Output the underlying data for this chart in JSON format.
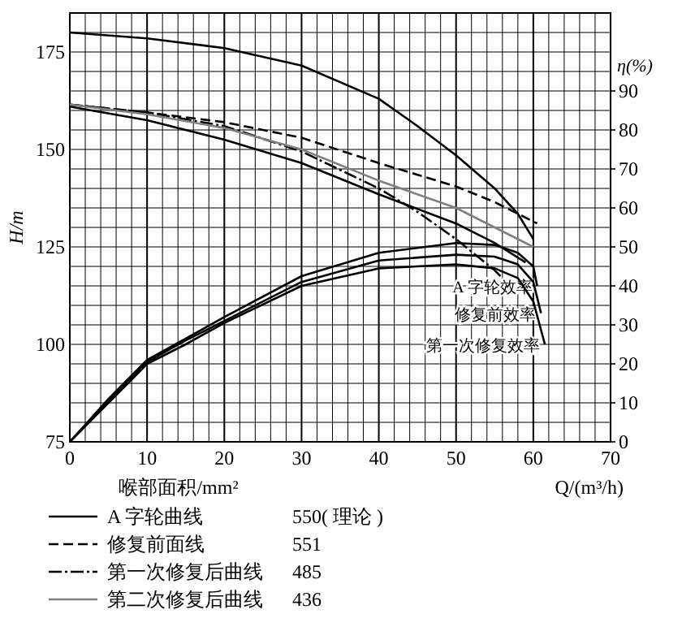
{
  "chart_data": {
    "type": "line",
    "xlabel": "Q/(m³/h)",
    "ylabel": "H/m",
    "y2label": "η(%)",
    "annotations": [
      "550( 理论 )",
      "551",
      "485",
      "436",
      "喉部面积/mm²"
    ],
    "xlim": [
      0,
      70
    ],
    "ylim": [
      75,
      185
    ],
    "y2lim": [
      0,
      110
    ],
    "xticks": [
      0,
      {
        "value": 2,
        "label": null
      },
      {
        "value": 4,
        "label": null
      },
      {
        "value": 6,
        "label": null
      },
      {
        "value": 8,
        "label": null
      },
      10,
      {
        "value": 12,
        "label": null
      },
      {
        "value": 14,
        "label": null
      },
      {
        "value": 16,
        "label": null
      },
      {
        "value": 18,
        "label": null
      },
      20,
      {
        "value": 22,
        "label": null
      },
      {
        "value": 24,
        "label": null
      },
      {
        "value": 26,
        "label": null
      },
      {
        "value": 28,
        "label": null
      },
      30,
      {
        "value": 32,
        "label": null
      },
      {
        "value": 34,
        "label": null
      },
      {
        "value": 36,
        "label": null
      },
      {
        "value": 38,
        "label": null
      },
      40,
      {
        "value": 42,
        "label": null
      },
      {
        "value": 44,
        "label": null
      },
      {
        "value": 46,
        "label": null
      },
      {
        "value": 48,
        "label": null
      },
      50,
      {
        "value": 52,
        "label": null
      },
      {
        "value": 54,
        "label": null
      },
      {
        "value": 56,
        "label": null
      },
      {
        "value": 58,
        "label": null
      },
      60,
      {
        "value": 62,
        "label": null
      },
      {
        "value": 64,
        "label": null
      },
      {
        "value": 66,
        "label": null
      },
      {
        "value": 68,
        "label": null
      },
      70
    ],
    "yticks": [
      75,
      {
        "value": 80,
        "label": null
      },
      {
        "value": 85,
        "label": null
      },
      {
        "value": 90,
        "label": null
      },
      {
        "value": 95,
        "label": null
      },
      100,
      {
        "value": 105,
        "label": null
      },
      {
        "value": 110,
        "label": null
      },
      {
        "value": 115,
        "label": null
      },
      {
        "value": 120,
        "label": null
      },
      125,
      {
        "value": 130,
        "label": null
      },
      {
        "value": 135,
        "label": null
      },
      {
        "value": 140,
        "label": null
      },
      {
        "value": 145,
        "label": null
      },
      150,
      {
        "value": 155,
        "label": null
      },
      {
        "value": 160,
        "label": null
      },
      {
        "value": 165,
        "label": null
      },
      {
        "value": 170,
        "label": null
      },
      175,
      {
        "value": 180,
        "label": null
      },
      {
        "value": 185,
        "label": null
      }
    ],
    "y2ticks": [
      0,
      10,
      20,
      30,
      40,
      50,
      60,
      70,
      80,
      90
    ],
    "grid": true,
    "legend": "bottom",
    "marker": "none",
    "series": [
      {
        "name": "A 字轮曲线",
        "color": "#000000",
        "line_style": "solid",
        "x": [
          0,
          10,
          20,
          30,
          40,
          45,
          50,
          55,
          58,
          60
        ],
        "values": [
          180,
          178.5,
          176,
          171.5,
          163,
          156,
          148.5,
          140,
          133.5,
          127
        ]
      },
      {
        "name": "修复前面线",
        "color": "#000000",
        "line_style": "dashed",
        "x": [
          0,
          10,
          20,
          30,
          40,
          50,
          55,
          60,
          60.5
        ],
        "values": [
          161.5,
          159.5,
          157,
          153,
          146.5,
          140.5,
          136.5,
          131.5,
          131
        ]
      },
      {
        "name": "第一次修复后曲线",
        "color": "#000000",
        "line_style": "dashdot",
        "x": [
          0,
          10,
          20,
          30,
          40,
          45,
          50,
          55,
          57.5
        ],
        "values": [
          161.5,
          159.5,
          156,
          149.5,
          140,
          134,
          127,
          119,
          114
        ]
      },
      {
        "name": "第二次修复后曲线",
        "color": "#808080",
        "line_style": "solid",
        "x": [
          0,
          10,
          20,
          30,
          40,
          50,
          55,
          60
        ],
        "values": [
          161.5,
          159,
          155.5,
          150,
          142,
          135,
          130,
          125
        ]
      },
      {
        "color": "#000000",
        "line_style": "solid",
        "x": [
          0,
          10,
          20,
          30,
          40,
          50,
          55,
          59
        ],
        "values": [
          161,
          157.5,
          152.5,
          146.5,
          138.5,
          131,
          126,
          121
        ]
      },
      {
        "name": "A 字轮效率",
        "color": "#000000",
        "line_style": "solid",
        "axis": "y2",
        "x": [
          0,
          5,
          10,
          15,
          20,
          30,
          40,
          50,
          55,
          58,
          60,
          60.5
        ],
        "values": [
          0,
          11,
          21,
          26.5,
          32,
          42.5,
          48.5,
          51,
          50.5,
          48.5,
          45,
          40
        ]
      },
      {
        "name": "修复前效率",
        "color": "#000000",
        "line_style": "solid",
        "axis": "y2",
        "x": [
          0,
          5,
          10,
          15,
          20,
          30,
          40,
          50,
          55,
          58,
          60,
          61
        ],
        "values": [
          0,
          10.5,
          20.5,
          26,
          31,
          41,
          46.5,
          48,
          47.5,
          45.5,
          41,
          33
        ]
      },
      {
        "name": "第一次修复效率",
        "color": "#000000",
        "line_style": "solid",
        "axis": "y2",
        "x": [
          0,
          5,
          10,
          15,
          20,
          30,
          40,
          50,
          55,
          58,
          60,
          61.5
        ],
        "values": [
          0,
          10,
          20,
          25,
          30.5,
          40,
          44.5,
          45.5,
          44.5,
          42,
          36,
          25
        ]
      }
    ]
  }
}
